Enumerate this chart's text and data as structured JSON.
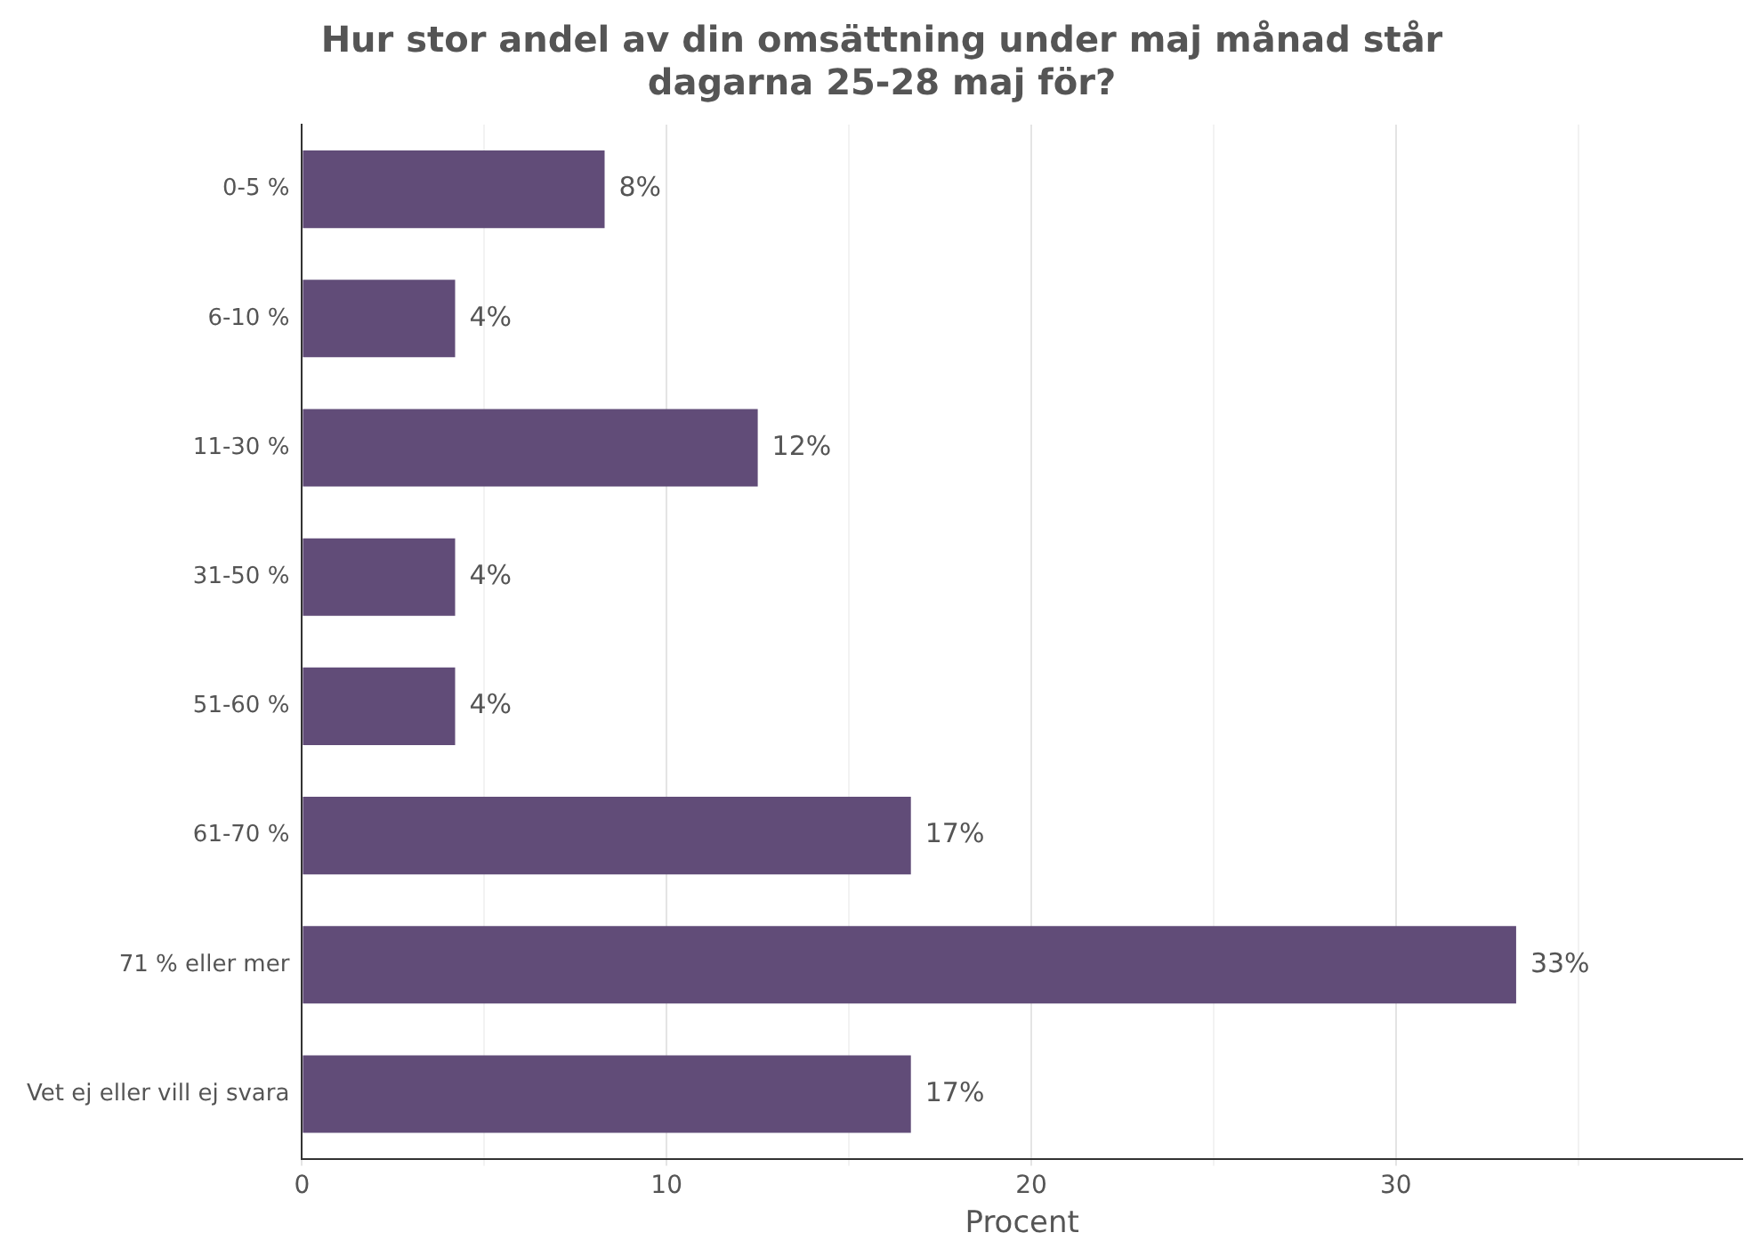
{
  "chart_data": {
    "type": "bar",
    "orientation": "horizontal",
    "title": "Hur stor andel av din omsättning under maj månad står\ndagarna 25-28 maj för?",
    "xlabel": "Procent",
    "categories": [
      "0-5 %",
      "6-10 %",
      "11-30 %",
      "31-50 %",
      "51-60 %",
      "61-70 %",
      "71 % eller mer",
      "Vet ej eller vill ej svara"
    ],
    "values": [
      8.3,
      4.2,
      12.5,
      4.2,
      4.2,
      16.7,
      33.3,
      16.7
    ],
    "value_labels": [
      "8%",
      "4%",
      "12%",
      "4%",
      "4%",
      "17%",
      "33%",
      "17%"
    ],
    "color": "#614c78",
    "xlim": [
      0,
      39.5
    ],
    "xticks": [
      0,
      {
        "value": 5,
        "label": null
      },
      10,
      {
        "value": 15,
        "label": null
      },
      20,
      {
        "value": 25,
        "label": null
      },
      30,
      {
        "value": 35,
        "label": null
      }
    ],
    "grid": "x",
    "legend": false
  }
}
